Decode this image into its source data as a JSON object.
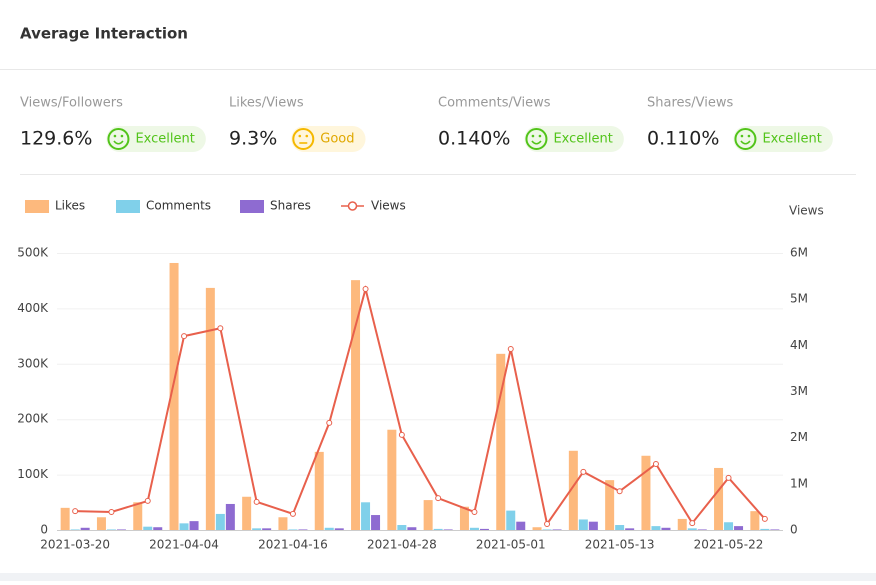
{
  "header": {
    "title": "Average Interaction"
  },
  "metrics": [
    {
      "label": "Views/Followers",
      "value": "129.6%",
      "rating": "Excellent"
    },
    {
      "label": "Likes/Views",
      "value": "9.3%",
      "rating": "Good"
    },
    {
      "label": "Comments/Views",
      "value": "0.140%",
      "rating": "Excellent"
    },
    {
      "label": "Shares/Views",
      "value": "0.110%",
      "rating": "Excellent"
    }
  ],
  "chart_data": {
    "type": "bar",
    "categories": [
      "2021-03-20",
      null,
      null,
      "2021-04-04",
      null,
      null,
      "2021-04-16",
      null,
      null,
      "2021-04-28",
      null,
      null,
      "2021-05-01",
      null,
      null,
      "2021-05-13",
      null,
      null,
      "2021-05-22",
      null
    ],
    "series": [
      {
        "name": "Likes",
        "color": "#fdb97d",
        "values": [
          40000,
          23000,
          50000,
          482000,
          437000,
          60000,
          23000,
          141000,
          451000,
          181000,
          54000,
          42000,
          318000,
          5000,
          143000,
          90000,
          134000,
          20000,
          112000,
          34000
        ]
      },
      {
        "name": "Comments",
        "color": "#80d0ea",
        "values": [
          1000,
          1000,
          6000,
          12000,
          29000,
          3000,
          1000,
          4000,
          50000,
          9000,
          2000,
          4000,
          35000,
          1000,
          19000,
          9000,
          7000,
          3000,
          14000,
          2000
        ]
      },
      {
        "name": "Shares",
        "color": "#8e6bd1",
        "values": [
          4000,
          1000,
          5000,
          16000,
          47000,
          3000,
          1000,
          3000,
          27000,
          5000,
          1000,
          2000,
          15000,
          1000,
          15000,
          3000,
          4000,
          1000,
          7000,
          1000
        ]
      },
      {
        "name": "Views",
        "color": "#e8604c",
        "type": "line",
        "axis": "y2",
        "values": [
          410000,
          390000,
          630000,
          4200000,
          4370000,
          610000,
          350000,
          2320000,
          5220000,
          2060000,
          690000,
          390000,
          3920000,
          130000,
          1260000,
          840000,
          1430000,
          150000,
          1130000,
          240000
        ]
      }
    ],
    "ylim": [
      0,
      500000
    ],
    "yticks": [
      0,
      {
        "value": 100000,
        "label": "100K"
      },
      {
        "value": 200000,
        "label": "200K"
      },
      {
        "value": 300000,
        "label": "300K"
      },
      {
        "value": 400000,
        "label": "400K"
      },
      {
        "value": 500000,
        "label": "500K"
      }
    ],
    "y2label": "Views",
    "y2lim": [
      0,
      6000000
    ],
    "y2ticks": [
      0,
      {
        "value": 1000000,
        "label": "1M"
      },
      {
        "value": 2000000,
        "label": "2M"
      },
      {
        "value": 3000000,
        "label": "3M"
      },
      {
        "value": 4000000,
        "label": "4M"
      },
      {
        "value": 5000000,
        "label": "5M"
      },
      {
        "value": 6000000,
        "label": "6M"
      }
    ],
    "grid": true,
    "legend": "top-left"
  }
}
